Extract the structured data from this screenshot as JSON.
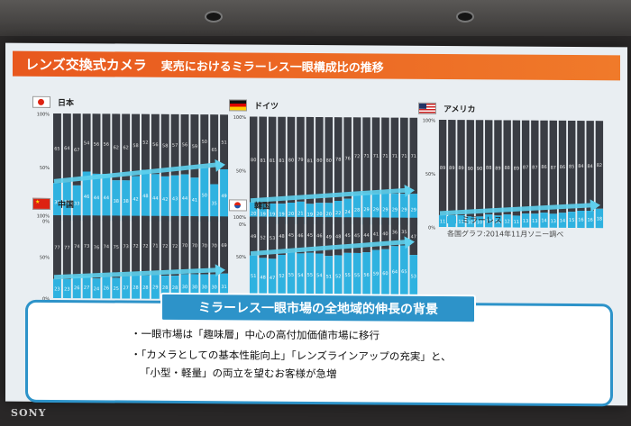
{
  "slide": {
    "title": "レンズ交換式カメラ",
    "subtitle": "実売におけるミラーレス一眼構成比の推移",
    "y_ticks": [
      "100%",
      "50%",
      "0%"
    ],
    "legend_label": "ミラーレス",
    "source_note": "各国グラフ:2014年11月ソニー調べ",
    "background_title": "ミラーレス一眼市場の全地域的伸長の背景",
    "bullets": [
      "・一眼市場は「趣味層」中心の高付加価値市場に移行",
      "・「カメラとしての基本性能向上」「レンズラインアップの充実」と、",
      "「小型・軽量」の両立を望むお客様が急増"
    ],
    "brand": "SONY"
  },
  "colors": {
    "title_bar": "#e8581e",
    "mirrorless": "#2fb2e0",
    "dslr": "#3a3d44",
    "arrow": "#5fd0ee",
    "box_border": "#2d93c9"
  },
  "chart_data": [
    {
      "type": "bar",
      "stacked": true,
      "country": "日本",
      "flag": "japan",
      "series": [
        {
          "name": "ミラーレス",
          "values": [
            35,
            36,
            33,
            46,
            44,
            44,
            38,
            38,
            42,
            48,
            44,
            42,
            43,
            44,
            41,
            50,
            35,
            49
          ]
        }
      ],
      "ylim": [
        0,
        100
      ]
    },
    {
      "type": "bar",
      "stacked": true,
      "country": "ドイツ",
      "flag": "germany",
      "series": [
        {
          "name": "ミラーレス",
          "values": [
            20,
            19,
            19,
            19,
            20,
            21,
            19,
            20,
            20,
            22,
            24,
            28,
            29,
            29,
            29,
            29,
            29,
            29
          ]
        }
      ],
      "ylim": [
        0,
        100
      ]
    },
    {
      "type": "bar",
      "stacked": true,
      "country": "アメリカ",
      "flag": "usa",
      "series": [
        {
          "name": "ミラーレス",
          "values": [
            11,
            11,
            11,
            10,
            10,
            12,
            11,
            12,
            11,
            13,
            13,
            14,
            13,
            14,
            15,
            16,
            16,
            18
          ]
        }
      ],
      "ylim": [
        0,
        100
      ]
    },
    {
      "type": "bar",
      "stacked": true,
      "country": "中国",
      "flag": "china",
      "series": [
        {
          "name": "ミラーレス",
          "values": [
            23,
            23,
            26,
            27,
            24,
            26,
            25,
            27,
            28,
            28,
            29,
            28,
            28,
            30,
            30,
            30,
            30,
            31
          ]
        }
      ],
      "ylim": [
        0,
        100
      ]
    },
    {
      "type": "bar",
      "stacked": true,
      "country": "韓国",
      "flag": "korea",
      "series": [
        {
          "name": "ミラーレス",
          "values": [
            51,
            48,
            47,
            52,
            55,
            54,
            55,
            54,
            51,
            52,
            55,
            55,
            56,
            59,
            60,
            64,
            65,
            53
          ]
        }
      ],
      "ylim": [
        0,
        100
      ]
    }
  ]
}
